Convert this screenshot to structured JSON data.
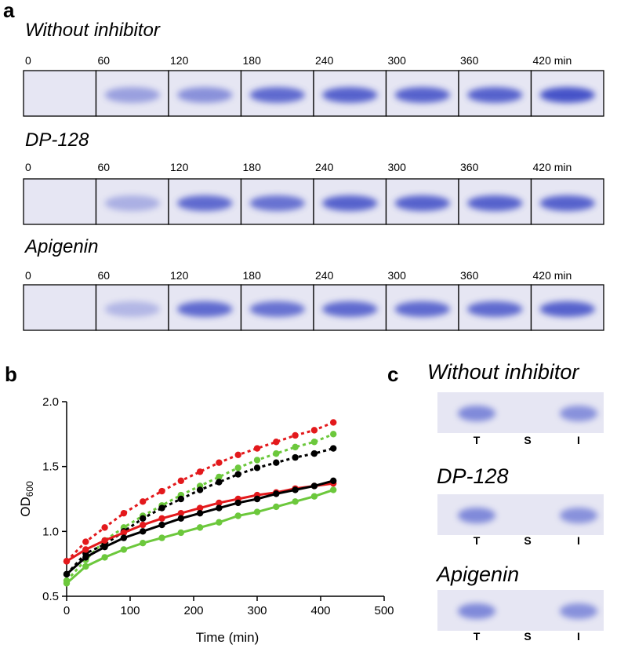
{
  "panel_a": {
    "label": "a",
    "rows": [
      {
        "title": "Without inhibitor",
        "lanes": [
          "0",
          "60",
          "120",
          "180",
          "240",
          "300",
          "360",
          "420 min"
        ]
      },
      {
        "title": "DP-128",
        "lanes": [
          "0",
          "60",
          "120",
          "180",
          "240",
          "300",
          "360",
          "420 min"
        ]
      },
      {
        "title": "Apigenin",
        "lanes": [
          "0",
          "60",
          "120",
          "180",
          "240",
          "300",
          "360",
          "420 min"
        ]
      }
    ]
  },
  "chart_data": {
    "type": "line",
    "panel_label": "b",
    "xlabel": "Time (min)",
    "ylabel": {
      "text": "OD",
      "subscript": "600"
    },
    "x": [
      0,
      30,
      60,
      90,
      120,
      150,
      180,
      210,
      240,
      270,
      300,
      330,
      360,
      390,
      420
    ],
    "xlim": [
      0,
      500
    ],
    "xticks": [
      0,
      100,
      200,
      300,
      400,
      500
    ],
    "ylim": [
      0.5,
      2.0
    ],
    "yticks": [
      0.5,
      {
        "value": 1,
        "label": "1.0"
      },
      1.5,
      {
        "value": 2,
        "label": "2.0"
      }
    ],
    "series": [
      {
        "color": "#e3191c",
        "dashed": true,
        "values": [
          0.77,
          0.92,
          1.03,
          1.14,
          1.23,
          1.31,
          1.39,
          1.46,
          1.53,
          1.59,
          1.64,
          1.69,
          1.74,
          1.78,
          1.84
        ]
      },
      {
        "color": "#6cc83c",
        "dashed": true,
        "values": [
          0.62,
          0.78,
          0.93,
          1.03,
          1.12,
          1.2,
          1.28,
          1.35,
          1.42,
          1.49,
          1.55,
          1.6,
          1.65,
          1.69,
          1.75
        ]
      },
      {
        "color": "#000000",
        "dashed": true,
        "values": [
          0.67,
          0.83,
          0.9,
          1.0,
          1.1,
          1.18,
          1.25,
          1.32,
          1.38,
          1.44,
          1.49,
          1.53,
          1.57,
          1.6,
          1.64
        ]
      },
      {
        "color": "#e3191c",
        "dashed": false,
        "values": [
          0.77,
          0.86,
          0.93,
          0.99,
          1.05,
          1.1,
          1.14,
          1.18,
          1.22,
          1.25,
          1.28,
          1.3,
          1.33,
          1.35,
          1.37
        ]
      },
      {
        "color": "#000000",
        "dashed": false,
        "values": [
          0.67,
          0.8,
          0.88,
          0.95,
          1.0,
          1.05,
          1.1,
          1.14,
          1.18,
          1.22,
          1.25,
          1.29,
          1.32,
          1.35,
          1.39
        ]
      },
      {
        "color": "#6cc83c",
        "dashed": false,
        "values": [
          0.6,
          0.73,
          0.8,
          0.86,
          0.91,
          0.95,
          0.99,
          1.03,
          1.07,
          1.12,
          1.15,
          1.19,
          1.23,
          1.27,
          1.32
        ]
      }
    ]
  },
  "panel_c": {
    "label": "c",
    "gels": [
      {
        "title": "Without inhibitor",
        "lanes": [
          "T",
          "S",
          "I"
        ]
      },
      {
        "title": "DP-128",
        "lanes": [
          "T",
          "S",
          "I"
        ]
      },
      {
        "title": "Apigenin",
        "lanes": [
          "T",
          "S",
          "I"
        ]
      }
    ]
  }
}
